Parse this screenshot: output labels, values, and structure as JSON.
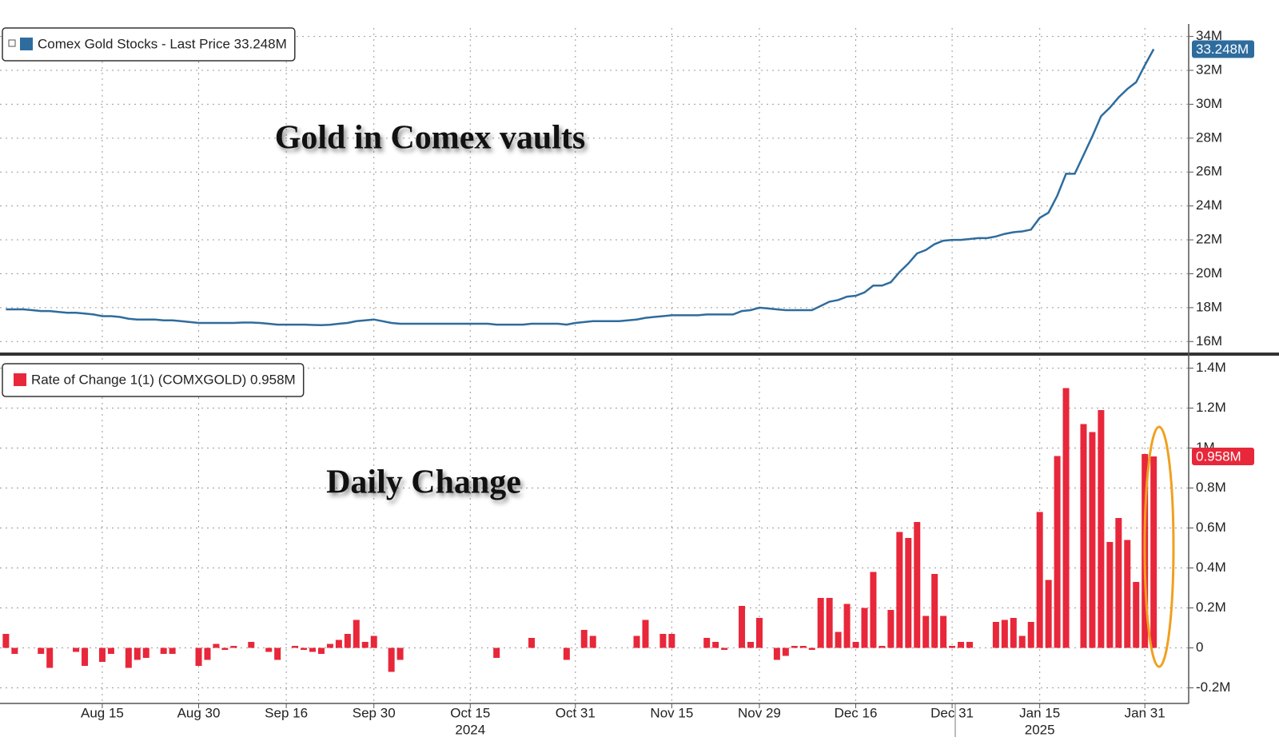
{
  "chart_data": {
    "type": "panels",
    "categories": [
      null,
      null,
      null,
      null,
      null,
      null,
      null,
      null,
      null,
      null,
      null,
      "Aug 15",
      null,
      null,
      null,
      null,
      null,
      null,
      null,
      null,
      null,
      null,
      "Aug 30",
      null,
      null,
      null,
      null,
      null,
      null,
      null,
      null,
      null,
      "Sep 16",
      null,
      null,
      null,
      null,
      null,
      null,
      null,
      null,
      null,
      "Sep 30",
      null,
      null,
      null,
      null,
      null,
      null,
      null,
      null,
      null,
      null,
      "Oct 15",
      null,
      null,
      null,
      null,
      null,
      null,
      null,
      null,
      null,
      null,
      null,
      "Oct 31",
      null,
      null,
      null,
      null,
      null,
      null,
      null,
      null,
      null,
      null,
      "Nov 15",
      null,
      null,
      null,
      null,
      null,
      null,
      null,
      null,
      null,
      "Nov 29",
      null,
      null,
      null,
      null,
      null,
      null,
      null,
      null,
      null,
      null,
      "Dec 16",
      null,
      null,
      null,
      null,
      null,
      null,
      null,
      null,
      null,
      null,
      "Dec 31",
      null,
      null,
      null,
      null,
      null,
      null,
      null,
      null,
      null,
      "Jan 15",
      null,
      null,
      null,
      null,
      null,
      null,
      null,
      null,
      null,
      null,
      null,
      "Jan 31",
      null
    ],
    "year_labels": [
      "2024",
      "2025"
    ],
    "grid": true,
    "panels": [
      {
        "type": "line",
        "title": "Gold in Comex vaults",
        "legend": "top-left",
        "series": [
          {
            "name": "Comex Gold Stocks - Last Price 33.248M",
            "color": "#2e6c9e",
            "values": [
              17.9,
              17.9,
              17.9,
              17.85,
              17.8,
              17.8,
              17.75,
              17.7,
              17.7,
              17.65,
              17.6,
              17.5,
              17.5,
              17.45,
              17.35,
              17.3,
              17.3,
              17.3,
              17.25,
              17.25,
              17.2,
              17.15,
              17.1,
              17.1,
              17.1,
              17.1,
              17.1,
              17.12,
              17.12,
              17.1,
              17.05,
              17.0,
              17.0,
              17.0,
              17.0,
              16.98,
              16.97,
              16.99,
              17.05,
              17.1,
              17.2,
              17.25,
              17.3,
              17.2,
              17.1,
              17.05,
              17.05,
              17.05,
              17.05,
              17.05,
              17.05,
              17.05,
              17.05,
              17.05,
              17.05,
              17.05,
              17.0,
              17.0,
              17.0,
              17.0,
              17.05,
              17.05,
              17.05,
              17.05,
              17.0,
              17.1,
              17.15,
              17.2,
              17.2,
              17.2,
              17.2,
              17.25,
              17.3,
              17.4,
              17.45,
              17.5,
              17.55,
              17.55,
              17.55,
              17.55,
              17.6,
              17.6,
              17.6,
              17.6,
              17.8,
              17.85,
              18.0,
              17.95,
              17.9,
              17.85,
              17.85,
              17.85,
              17.85,
              18.1,
              18.35,
              18.45,
              18.65,
              18.7,
              18.9,
              19.3,
              19.3,
              19.5,
              20.1,
              20.6,
              21.2,
              21.4,
              21.75,
              21.95,
              22.0,
              22.0,
              22.05,
              22.1,
              22.1,
              22.2,
              22.35,
              22.45,
              22.5,
              22.6,
              23.3,
              23.6,
              24.6,
              25.9,
              25.9,
              27.0,
              28.1,
              29.3,
              29.8,
              30.4,
              30.9,
              31.3,
              32.3,
              33.248
            ],
            "last_label": "33.248M"
          }
        ],
        "ylim": [
          15.4,
          34.5
        ],
        "yticks": [
          {
            "value": 16,
            "label": "16M"
          },
          {
            "value": 18,
            "label": "18M"
          },
          {
            "value": 20,
            "label": "20M"
          },
          {
            "value": 22,
            "label": "22M"
          },
          {
            "value": 24,
            "label": "24M"
          },
          {
            "value": 26,
            "label": "26M"
          },
          {
            "value": 28,
            "label": "28M"
          },
          {
            "value": 30,
            "label": "30M"
          },
          {
            "value": 32,
            "label": "32M"
          },
          {
            "value": 34,
            "label": "34M"
          }
        ]
      },
      {
        "type": "bar",
        "title": "Daily Change",
        "legend": "top-left",
        "series": [
          {
            "name": "Rate of Change 1(1) (COMXGOLD) 0.958M",
            "color": "#e8273a",
            "values": [
              0.07,
              -0.03,
              0,
              0,
              -0.03,
              -0.1,
              0,
              0,
              -0.02,
              -0.09,
              0,
              -0.07,
              -0.03,
              0,
              -0.1,
              -0.06,
              -0.05,
              0,
              -0.03,
              -0.03,
              0,
              0,
              -0.09,
              -0.06,
              0.02,
              -0.01,
              0.01,
              0,
              0.03,
              0,
              -0.02,
              -0.06,
              0,
              0.01,
              -0.01,
              -0.02,
              -0.03,
              0.02,
              0.04,
              0.07,
              0.14,
              0.03,
              0.06,
              0,
              -0.12,
              -0.06,
              0,
              0,
              0,
              0,
              0,
              0,
              0,
              0,
              0,
              0,
              -0.05,
              0,
              0,
              0,
              0.05,
              0,
              0,
              0,
              -0.06,
              0,
              0.09,
              0.06,
              0,
              0,
              0,
              0,
              0.06,
              0.14,
              0,
              0.07,
              0.07,
              0,
              0,
              0,
              0.05,
              0.03,
              -0.01,
              0,
              0.21,
              0.03,
              0.15,
              0,
              -0.06,
              -0.04,
              0.01,
              0.01,
              -0.01,
              0.25,
              0.25,
              0.08,
              0.22,
              0.03,
              0.2,
              0.38,
              0.01,
              0.19,
              0.58,
              0.55,
              0.63,
              0.16,
              0.37,
              0.16,
              0.01,
              0.03,
              0.03,
              0,
              0,
              0.13,
              0.14,
              0.15,
              0.06,
              0.13,
              0.68,
              0.34,
              0.96,
              1.3,
              0,
              1.12,
              1.08,
              1.19,
              0.53,
              0.65,
              0.54,
              0.33,
              0.97,
              0.958
            ],
            "last_label": "0.958M"
          }
        ],
        "ylim": [
          -0.27,
          1.45
        ],
        "yticks": [
          {
            "value": -0.2,
            "label": "-0.2M"
          },
          0,
          {
            "value": 0.2,
            "label": "0.2M"
          },
          {
            "value": 0.4,
            "label": "0.4M"
          },
          {
            "value": 0.6,
            "label": "0.6M"
          },
          {
            "value": 0.8,
            "label": "0.8M"
          },
          {
            "value": 1,
            "label": "1M"
          },
          {
            "value": 1.2,
            "label": "1.2M"
          },
          {
            "value": 1.4,
            "label": "1.4M"
          }
        ]
      }
    ]
  }
}
